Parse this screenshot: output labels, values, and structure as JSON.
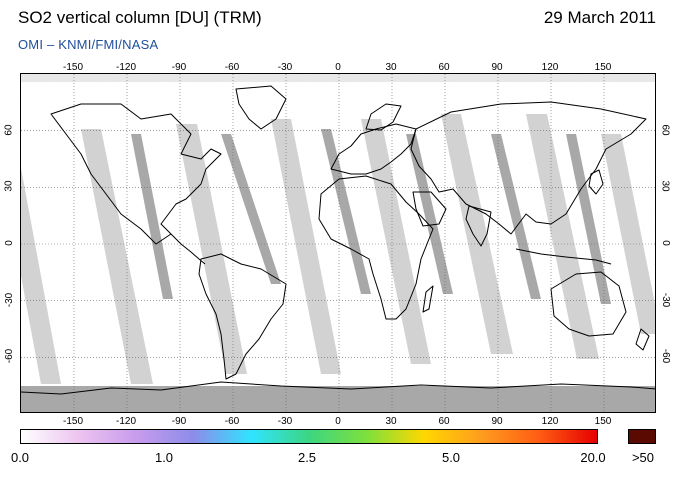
{
  "header": {
    "title": "SO2 vertical column [DU] (TRM)",
    "date": "29 March 2011",
    "credit": "OMI  –  KNMI/FMI/NASA"
  },
  "map": {
    "projection": "equirectangular",
    "lon_ticks": [
      "-150",
      "-120",
      "-90",
      "-60",
      "-30",
      "0",
      "30",
      "60",
      "90",
      "120",
      "150"
    ],
    "lat_ticks": [
      "60",
      "30",
      "0",
      "-30",
      "-60"
    ],
    "gridlines": "dotted",
    "missing_data_color": "#d2d2d2",
    "overlap_color": "#a8a8a8",
    "coastline_color": "#000000"
  },
  "colorbar": {
    "labels": [
      "0.0",
      "1.0",
      "2.5",
      "5.0",
      "20.0"
    ],
    "overflow_label": ">50",
    "overflow_color": "#5a0a00",
    "gradient_colors": [
      "#ffffff",
      "#ecc4f0",
      "#c89cec",
      "#8c8cea",
      "#30e4ff",
      "#3cd682",
      "#7ee03c",
      "#ffd700",
      "#ff9c1e",
      "#ff5c14",
      "#e60000"
    ]
  }
}
